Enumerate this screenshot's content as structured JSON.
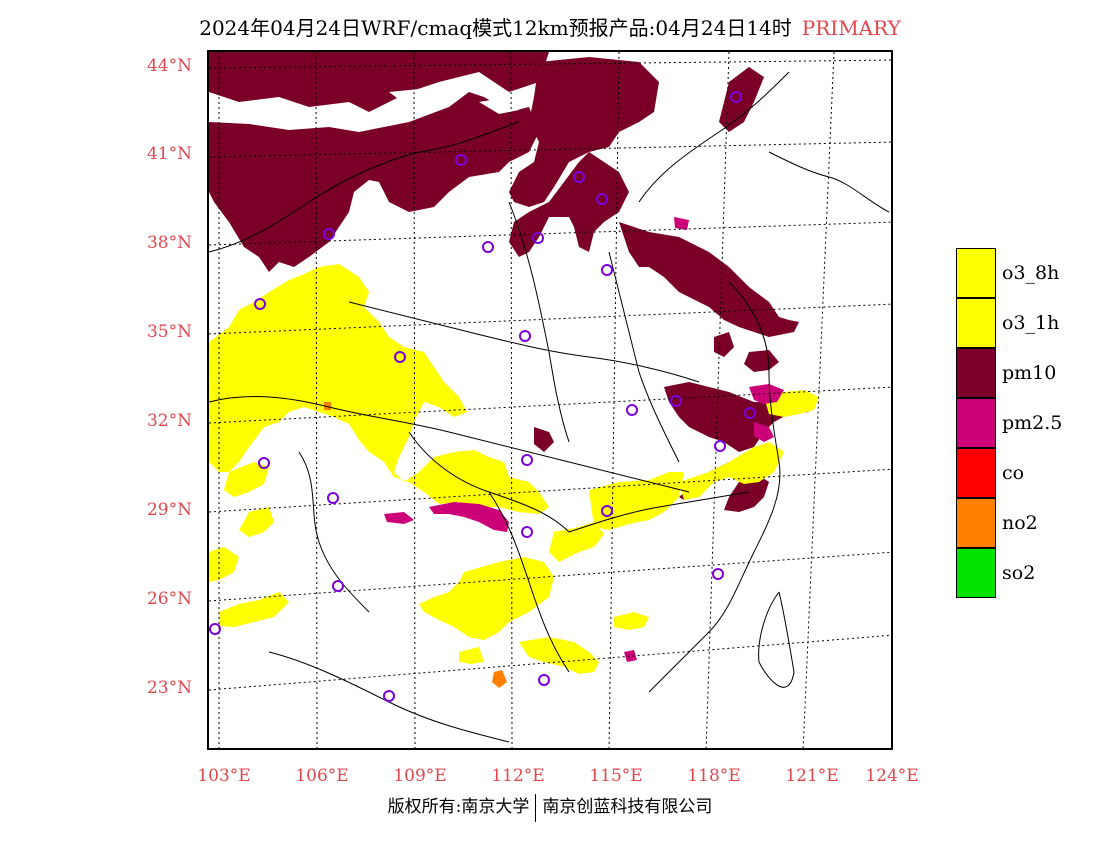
{
  "title": {
    "text": "2024年04月24日WRF/cmaq模式12km预报产品:04月24日14时",
    "tag": "PRIMARY"
  },
  "axes": {
    "lat_labels": [
      "44°N",
      "41°N",
      "38°N",
      "35°N",
      "32°N",
      "29°N",
      "26°N",
      "23°N"
    ],
    "lon_labels": [
      "103°E",
      "106°E",
      "109°E",
      "112°E",
      "115°E",
      "118°E",
      "121°E",
      "124°E"
    ]
  },
  "legend": [
    {
      "label": "o3_8h",
      "color": "#ffff00"
    },
    {
      "label": "o3_1h",
      "color": "#ffff00"
    },
    {
      "label": "pm10",
      "color": "#7a0027"
    },
    {
      "label": "pm2.5",
      "color": "#cc0077"
    },
    {
      "label": "co",
      "color": "#ff0000"
    },
    {
      "label": "no2",
      "color": "#ff7f00"
    },
    {
      "label": "so2",
      "color": "#00e400"
    }
  ],
  "footer": {
    "left": "版权所有:南京大学",
    "right": "南京创蓝科技有限公司"
  }
}
